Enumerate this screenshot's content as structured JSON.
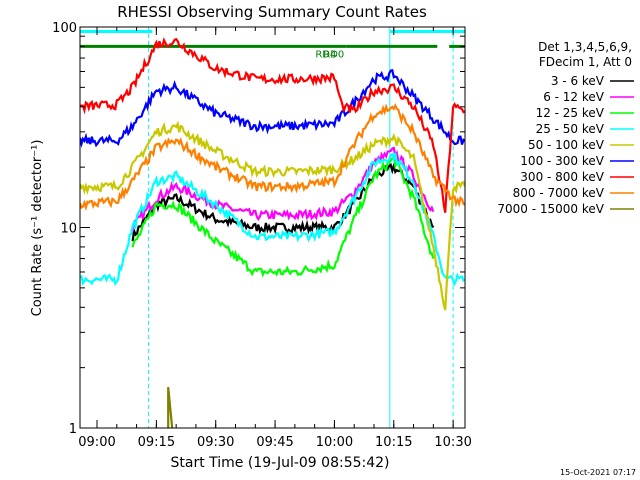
{
  "chart_data": {
    "type": "line",
    "title": "RHESSI Observing Summary Count Rates",
    "xlabel": "Start Time (19-Jul-09 08:55:42)",
    "ylabel": "Count Rate (s⁻¹ detector⁻¹)",
    "y_scale": "log",
    "ylim": [
      1,
      100
    ],
    "xlim": [
      "08:55:42",
      "10:33:00"
    ],
    "x_ticks": [
      "09:00",
      "09:15",
      "09:30",
      "09:45",
      "10:00",
      "10:15",
      "10:30"
    ],
    "y_ticks": [
      1,
      10,
      100
    ],
    "legend_header": [
      "Det 1,3,4,5,6,9,",
      "FDecim 1, Att 0"
    ],
    "legend_position": "right",
    "footer_date": "15-Oct-2021 07:17",
    "annotations": [
      {
        "label": "RD4",
        "time": "10:01"
      },
      {
        "label": "RD0",
        "time": "10:03"
      }
    ],
    "attenuator_bar": {
      "color": "#008000",
      "level": 80,
      "segments": [
        [
          "08:55:42",
          "10:03"
        ],
        [
          "10:03",
          "10:26"
        ],
        [
          "10:29",
          "10:33"
        ]
      ]
    },
    "cyan_bar": {
      "level": 95,
      "segments": [
        [
          "08:55:42",
          "09:14"
        ],
        [
          "10:14",
          "10:33"
        ]
      ]
    },
    "vertical_lines": [
      {
        "time": "08:55:42",
        "style": "solid"
      },
      {
        "time": "09:13",
        "style": "dashed"
      },
      {
        "time": "10:14",
        "style": "solid"
      },
      {
        "time": "10:30",
        "style": "dashed"
      }
    ],
    "series": [
      {
        "name": "3 - 6 keV",
        "color": "#000000",
        "points": [
          [
            "09:09",
            9
          ],
          [
            "09:15",
            13
          ],
          [
            "09:20",
            14
          ],
          [
            "09:30",
            11
          ],
          [
            "09:40",
            10
          ],
          [
            "09:50",
            10
          ],
          [
            "10:00",
            10
          ],
          [
            "10:05",
            13
          ],
          [
            "10:10",
            18
          ],
          [
            "10:15",
            20
          ],
          [
            "10:20",
            16
          ],
          [
            "10:25",
            10
          ]
        ]
      },
      {
        "name": "6 - 12 keV",
        "color": "#ff00ff",
        "points": [
          [
            "09:09",
            10
          ],
          [
            "09:15",
            14
          ],
          [
            "09:20",
            16
          ],
          [
            "09:30",
            13
          ],
          [
            "09:40",
            11.5
          ],
          [
            "09:50",
            11.5
          ],
          [
            "10:00",
            12
          ],
          [
            "10:05",
            15
          ],
          [
            "10:10",
            21
          ],
          [
            "10:15",
            24
          ],
          [
            "10:20",
            18
          ],
          [
            "10:25",
            12
          ]
        ]
      },
      {
        "name": "12 - 25 keV",
        "color": "#00ff00",
        "points": [
          [
            "09:09",
            8
          ],
          [
            "09:15",
            13
          ],
          [
            "09:20",
            13
          ],
          [
            "09:30",
            8.5
          ],
          [
            "09:40",
            6
          ],
          [
            "09:50",
            6
          ],
          [
            "10:00",
            6.5
          ],
          [
            "10:05",
            11
          ],
          [
            "10:10",
            18
          ],
          [
            "10:15",
            22
          ],
          [
            "10:20",
            14
          ],
          [
            "10:25",
            7
          ]
        ]
      },
      {
        "name": "25 - 50 keV",
        "color": "#00ffff",
        "points": [
          [
            "08:55:42",
            5.5
          ],
          [
            "09:05",
            5.5
          ],
          [
            "09:09",
            10
          ],
          [
            "09:15",
            17
          ],
          [
            "09:20",
            18
          ],
          [
            "09:30",
            13
          ],
          [
            "09:40",
            9
          ],
          [
            "09:50",
            9
          ],
          [
            "10:00",
            9.5
          ],
          [
            "10:05",
            14
          ],
          [
            "10:10",
            21
          ],
          [
            "10:15",
            23
          ],
          [
            "10:20",
            17
          ],
          [
            "10:25",
            9
          ],
          [
            "10:28",
            5.5
          ],
          [
            "10:33",
            5.5
          ]
        ]
      },
      {
        "name": "50 - 100 keV",
        "color": "#c8c800",
        "points": [
          [
            "08:55:42",
            16
          ],
          [
            "09:05",
            16
          ],
          [
            "09:09",
            20
          ],
          [
            "09:15",
            30
          ],
          [
            "09:20",
            32
          ],
          [
            "09:30",
            24
          ],
          [
            "09:40",
            19
          ],
          [
            "09:50",
            19
          ],
          [
            "10:00",
            19.5
          ],
          [
            "10:05",
            22
          ],
          [
            "10:10",
            26
          ],
          [
            "10:15",
            28
          ],
          [
            "10:20",
            22
          ],
          [
            "10:25",
            8
          ],
          [
            "10:28",
            4
          ],
          [
            "10:30",
            16
          ],
          [
            "10:33",
            16
          ]
        ]
      },
      {
        "name": "100 - 300 keV",
        "color": "#0000ff",
        "points": [
          [
            "08:55:42",
            27
          ],
          [
            "09:05",
            27
          ],
          [
            "09:09",
            32
          ],
          [
            "09:15",
            48
          ],
          [
            "09:20",
            50
          ],
          [
            "09:30",
            37
          ],
          [
            "09:40",
            32
          ],
          [
            "09:50",
            32
          ],
          [
            "10:00",
            33
          ],
          [
            "10:05",
            42
          ],
          [
            "10:10",
            55
          ],
          [
            "10:15",
            58
          ],
          [
            "10:20",
            45
          ],
          [
            "10:25",
            35
          ],
          [
            "10:30",
            27
          ],
          [
            "10:33",
            27
          ]
        ]
      },
      {
        "name": "300 - 800 keV",
        "color": "#ff0000",
        "points": [
          [
            "08:55:42",
            40
          ],
          [
            "09:05",
            41
          ],
          [
            "09:09",
            50
          ],
          [
            "09:15",
            82
          ],
          [
            "09:20",
            85
          ],
          [
            "09:30",
            62
          ],
          [
            "09:40",
            55
          ],
          [
            "09:50",
            55
          ],
          [
            "10:00",
            56
          ],
          [
            "10:02",
            40
          ],
          [
            "10:05",
            38
          ],
          [
            "10:10",
            48
          ],
          [
            "10:15",
            50
          ],
          [
            "10:20",
            40
          ],
          [
            "10:25",
            26
          ],
          [
            "10:28",
            12
          ],
          [
            "10:30",
            40
          ],
          [
            "10:33",
            38
          ]
        ]
      },
      {
        "name": "800 - 7000 keV",
        "color": "#ff8000",
        "points": [
          [
            "08:55:42",
            13
          ],
          [
            "09:05",
            13.5
          ],
          [
            "09:09",
            17
          ],
          [
            "09:15",
            25
          ],
          [
            "09:20",
            27
          ],
          [
            "09:30",
            20
          ],
          [
            "09:40",
            16
          ],
          [
            "09:50",
            16
          ],
          [
            "10:00",
            17
          ],
          [
            "10:05",
            26
          ],
          [
            "10:10",
            37
          ],
          [
            "10:15",
            40
          ],
          [
            "10:20",
            30
          ],
          [
            "10:25",
            18
          ],
          [
            "10:30",
            14
          ],
          [
            "10:33",
            13
          ]
        ]
      },
      {
        "name": "7000 - 15000 keV",
        "color": "#808000",
        "points": [
          [
            "09:18",
            1
          ],
          [
            "09:18",
            1.6
          ],
          [
            "09:19",
            1
          ]
        ]
      }
    ]
  }
}
